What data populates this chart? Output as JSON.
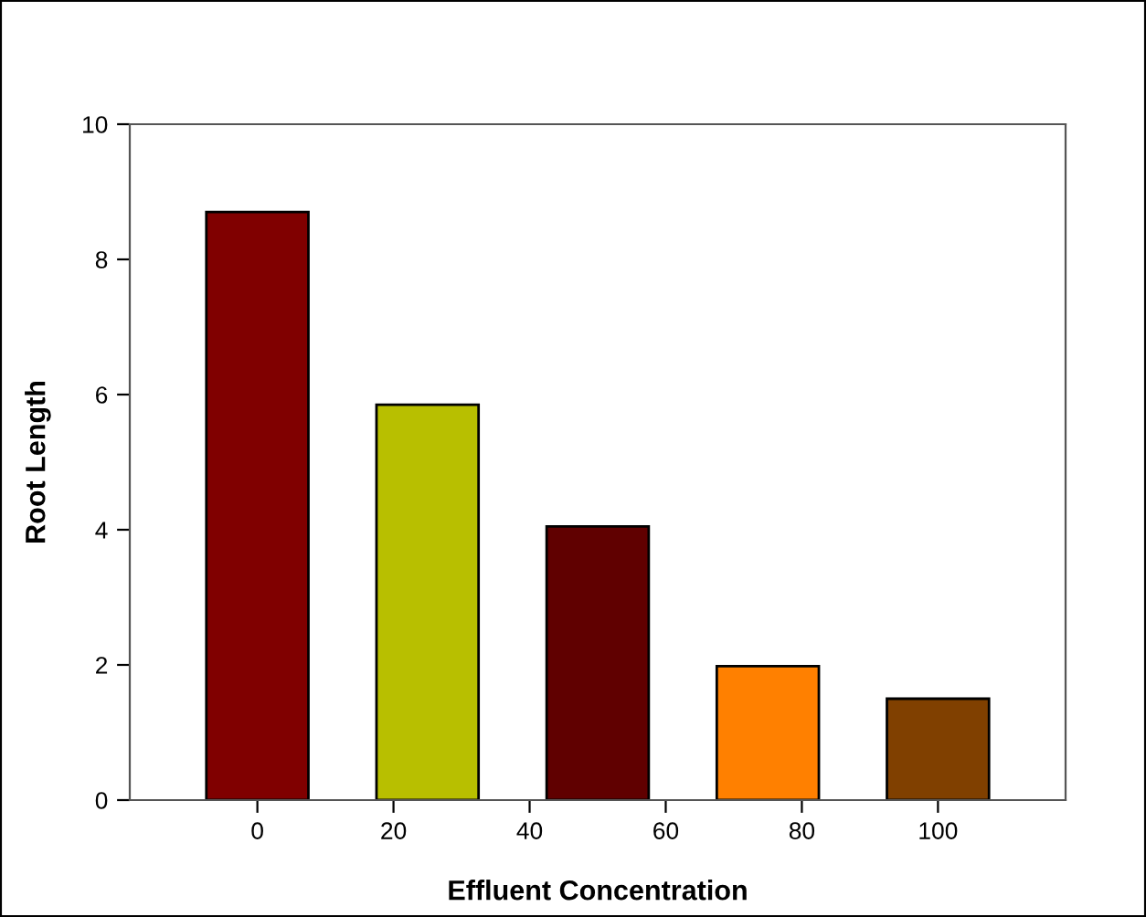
{
  "chart_data": {
    "type": "bar",
    "xlabel": "Effluent Concentration",
    "ylabel": "Root Length",
    "x": [
      0,
      25,
      50,
      75,
      100
    ],
    "values": [
      8.7,
      5.85,
      4.05,
      1.98,
      1.5
    ],
    "colors": [
      "#800000",
      "#b8bf00",
      "#600000",
      "#ff8000",
      "#804000"
    ],
    "xlim": [
      -18.75,
      118.75
    ],
    "xticks": [
      0,
      20,
      40,
      60,
      80,
      100
    ],
    "ylim": [
      0,
      10
    ],
    "yticks": [
      0,
      2,
      4,
      6,
      8,
      10
    ],
    "grid": false,
    "legend": false
  }
}
